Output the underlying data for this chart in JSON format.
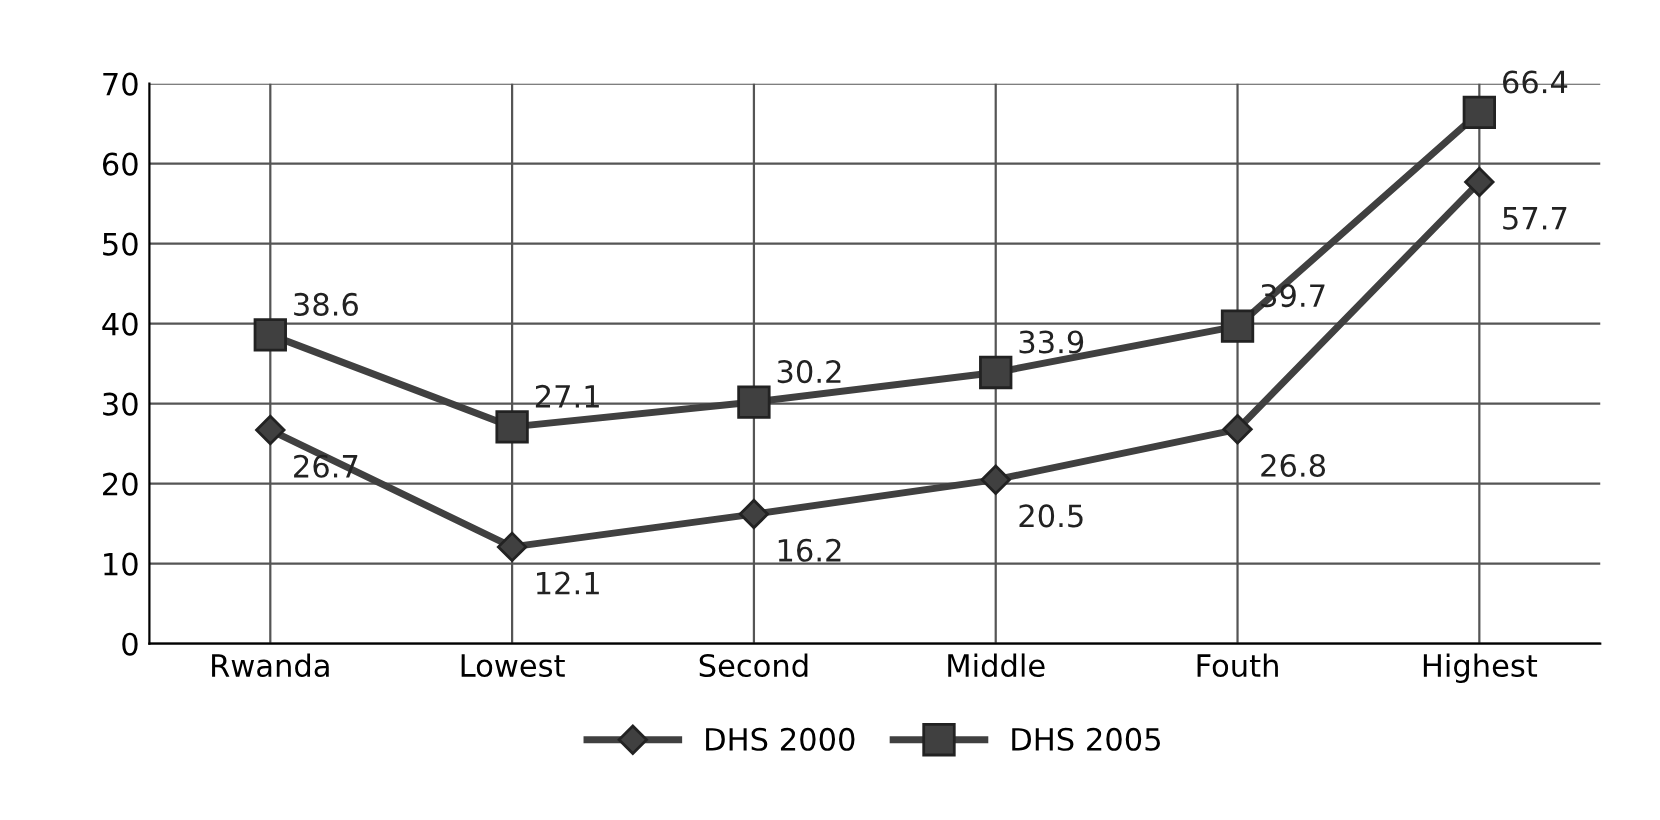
{
  "chart_data": {
    "type": "line",
    "categories": [
      "Rwanda",
      "Lowest",
      "Second",
      "Middle",
      "Fouth",
      "Highest"
    ],
    "series": [
      {
        "name": "DHS 2000",
        "color": "#404040",
        "marker": "diamond",
        "values": [
          26.7,
          12.1,
          16.2,
          20.5,
          26.8,
          57.7
        ]
      },
      {
        "name": "DHS 2005",
        "color": "#404040",
        "marker": "square",
        "values": [
          38.6,
          27.1,
          30.2,
          33.9,
          39.7,
          66.4
        ]
      }
    ],
    "ylim": [
      0,
      70
    ],
    "yticks": [
      0,
      10,
      20,
      30,
      40,
      50,
      60,
      70
    ],
    "grid": true,
    "legend": "bottom",
    "data_labels": true,
    "line_style": "solid"
  }
}
